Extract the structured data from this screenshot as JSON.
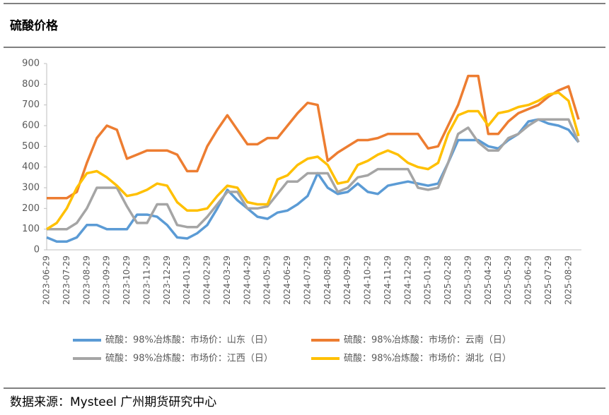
{
  "chart_data": {
    "type": "line",
    "title": "硫酸价格",
    "source": "数据来源：Mysteel 广州期货研究中心",
    "categories": [
      "2023-06-29",
      null,
      "2023-07-29",
      null,
      "2023-08-29",
      null,
      "2023-09-29",
      null,
      "2023-10-29",
      null,
      "2023-11-29",
      null,
      "2023-12-29",
      null,
      "2024-01-29",
      null,
      "2024-02-29",
      null,
      "2024-03-29",
      null,
      "2024-04-29",
      null,
      "2024-05-29",
      null,
      "2024-06-29",
      null,
      "2024-07-29",
      null,
      "2024-08-29",
      null,
      "2024-09-29",
      null,
      "2024-10-29",
      null,
      "2024-11-29",
      null,
      "2024-12-29",
      null,
      "2025-01-29",
      null,
      "2025-02-28",
      null,
      "2025-03-29",
      null,
      "2025-04-29",
      null,
      "2025-05-29",
      null,
      "2025-06-29",
      null,
      "2025-07-29",
      null,
      "2025-08-29",
      null
    ],
    "ylim": [
      0,
      900
    ],
    "yticks": [
      0,
      100,
      200,
      300,
      400,
      500,
      600,
      700,
      800,
      900
    ],
    "grid": false,
    "legend": "bottom",
    "series": [
      {
        "name": "硫酸：98%冶炼酸：市场价：山东（日）",
        "color": "#5b9bd5",
        "values": [
          60,
          40,
          40,
          60,
          120,
          120,
          100,
          100,
          100,
          170,
          170,
          160,
          120,
          60,
          55,
          80,
          120,
          200,
          290,
          240,
          200,
          160,
          150,
          180,
          190,
          220,
          260,
          370,
          300,
          270,
          280,
          320,
          280,
          270,
          310,
          320,
          330,
          320,
          310,
          320,
          420,
          530,
          530,
          530,
          500,
          490,
          530,
          560,
          620,
          630,
          610,
          600,
          580,
          520
        ]
      },
      {
        "name": "硫酸：98%冶炼酸：市场价：云南（日）",
        "color": "#ed7d31",
        "values": [
          250,
          250,
          250,
          280,
          420,
          540,
          600,
          580,
          440,
          460,
          480,
          480,
          480,
          460,
          380,
          380,
          500,
          580,
          650,
          580,
          510,
          510,
          540,
          540,
          600,
          660,
          710,
          700,
          430,
          470,
          500,
          530,
          530,
          540,
          560,
          560,
          560,
          560,
          490,
          500,
          600,
          700,
          840,
          840,
          560,
          560,
          620,
          660,
          680,
          700,
          740,
          770,
          790,
          630
        ]
      },
      {
        "name": "硫酸：98%冶炼酸：市场价：江西（日）",
        "color": "#a5a5a5",
        "values": [
          100,
          100,
          100,
          130,
          200,
          300,
          300,
          300,
          210,
          130,
          130,
          220,
          220,
          120,
          110,
          110,
          160,
          220,
          280,
          280,
          200,
          200,
          210,
          270,
          330,
          330,
          370,
          370,
          370,
          280,
          300,
          350,
          360,
          390,
          390,
          390,
          390,
          300,
          290,
          300,
          420,
          560,
          590,
          520,
          480,
          480,
          540,
          560,
          600,
          630,
          630,
          630,
          630,
          520
        ]
      },
      {
        "name": "硫酸：98%冶炼酸：市场价：湖北（日）",
        "color": "#ffc000",
        "values": [
          100,
          130,
          200,
          300,
          370,
          380,
          350,
          310,
          260,
          270,
          290,
          320,
          310,
          230,
          190,
          190,
          200,
          260,
          310,
          300,
          230,
          220,
          220,
          340,
          360,
          410,
          440,
          450,
          410,
          320,
          330,
          410,
          430,
          460,
          480,
          460,
          420,
          400,
          390,
          420,
          560,
          650,
          670,
          670,
          600,
          660,
          670,
          690,
          700,
          720,
          750,
          760,
          720,
          550
        ]
      }
    ]
  }
}
